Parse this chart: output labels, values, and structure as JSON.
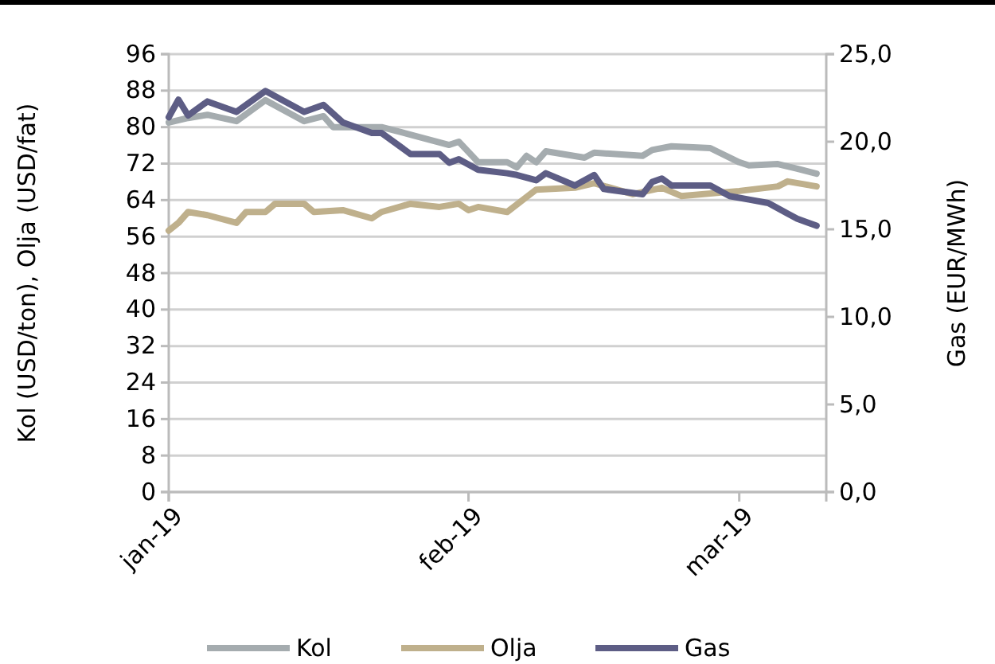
{
  "chart_data": {
    "type": "line",
    "ylabel": "Kol (USD/ton), Olja (USD/fat)",
    "y2label": "Gas (EUR/MWh)",
    "xlim": [
      "2019-01-01",
      "2019-03-10"
    ],
    "xticks": [
      {
        "value": "2019-01-01",
        "label": "jan-19"
      },
      {
        "value": "2019-02-01",
        "label": "feb-19"
      },
      {
        "value": "2019-03-01",
        "label": "mar-19"
      }
    ],
    "ylim": [
      0,
      96
    ],
    "yticks": [
      0,
      8,
      16,
      24,
      32,
      40,
      48,
      56,
      64,
      72,
      80,
      88,
      96
    ],
    "y2lim": [
      0,
      25
    ],
    "y2ticks": [
      {
        "value": 0,
        "label": "0,0"
      },
      {
        "value": 5,
        "label": "5,0"
      },
      {
        "value": 10,
        "label": "10,0"
      },
      {
        "value": 15,
        "label": "15,0"
      },
      {
        "value": 20,
        "label": "20,0"
      },
      {
        "value": 25,
        "label": "25,0"
      }
    ],
    "grid": "y",
    "legend": "bottom",
    "series": [
      {
        "name": "Kol",
        "color": "#a5acaf",
        "x": [
          "2019-01-01",
          "2019-01-03",
          "2019-01-05",
          "2019-01-08",
          "2019-01-11",
          "2019-01-15",
          "2019-01-17",
          "2019-01-18",
          "2019-01-22",
          "2019-01-23",
          "2019-01-25",
          "2019-01-30",
          "2019-01-31",
          "2019-02-02",
          "2019-02-05",
          "2019-02-06",
          "2019-02-07",
          "2019-02-08",
          "2019-02-09",
          "2019-02-13",
          "2019-02-14",
          "2019-02-19",
          "2019-02-20",
          "2019-02-22",
          "2019-02-26",
          "2019-03-01",
          "2019-03-02",
          "2019-03-05",
          "2019-03-07",
          "2019-03-09"
        ],
        "values": [
          81,
          82,
          82.7,
          81.3,
          85.9,
          81.3,
          82.4,
          80,
          80,
          80,
          78.9,
          76.1,
          76.8,
          72.3,
          72.3,
          71.2,
          73.7,
          72.3,
          74.7,
          73.3,
          74.4,
          73.7,
          75,
          75.8,
          75.4,
          72.3,
          71.6,
          71.9,
          70.9,
          69.8
        ]
      },
      {
        "name": "Olja",
        "color": "#bfb08c",
        "x": [
          "2019-01-01",
          "2019-01-02",
          "2019-01-03",
          "2019-01-05",
          "2019-01-08",
          "2019-01-09",
          "2019-01-11",
          "2019-01-12",
          "2019-01-15",
          "2019-01-16",
          "2019-01-19",
          "2019-01-22",
          "2019-01-23",
          "2019-01-26",
          "2019-01-29",
          "2019-01-31",
          "2019-02-01",
          "2019-02-02",
          "2019-02-05",
          "2019-02-08",
          "2019-02-12",
          "2019-02-14",
          "2019-02-18",
          "2019-02-21",
          "2019-02-23",
          "2019-03-01",
          "2019-03-05",
          "2019-03-06",
          "2019-03-09"
        ],
        "values": [
          57.3,
          59,
          61.4,
          60.7,
          59,
          61.4,
          61.4,
          63.2,
          63.2,
          61.4,
          61.8,
          60,
          61.4,
          63.2,
          62.5,
          63.2,
          61.8,
          62.5,
          61.4,
          66.3,
          66.7,
          67.7,
          65.3,
          66.7,
          64.9,
          66,
          67,
          68.1,
          67
        ]
      },
      {
        "name": "Gas",
        "color": "#5d5d85",
        "axis": "y2",
        "x": [
          "2019-01-01",
          "2019-01-02",
          "2019-01-03",
          "2019-01-05",
          "2019-01-08",
          "2019-01-09",
          "2019-01-11",
          "2019-01-15",
          "2019-01-17",
          "2019-01-19",
          "2019-01-22",
          "2019-01-23",
          "2019-01-26",
          "2019-01-29",
          "2019-01-30",
          "2019-01-31",
          "2019-02-02",
          "2019-02-05",
          "2019-02-06",
          "2019-02-08",
          "2019-02-09",
          "2019-02-12",
          "2019-02-14",
          "2019-02-15",
          "2019-02-19",
          "2019-02-20",
          "2019-02-21",
          "2019-02-22",
          "2019-02-26",
          "2019-02-28",
          "2019-03-02",
          "2019-03-04",
          "2019-03-06",
          "2019-03-07",
          "2019-03-09"
        ],
        "values": [
          21.4,
          22.4,
          21.5,
          22.3,
          21.7,
          22.1,
          22.9,
          21.7,
          22.1,
          21.1,
          20.5,
          20.5,
          19.3,
          19.3,
          18.8,
          19,
          18.4,
          18.2,
          18.1,
          17.8,
          18.2,
          17.5,
          18.1,
          17.3,
          17,
          17.7,
          17.9,
          17.5,
          17.5,
          16.9,
          16.7,
          16.5,
          15.9,
          15.6,
          15.2
        ]
      }
    ]
  }
}
